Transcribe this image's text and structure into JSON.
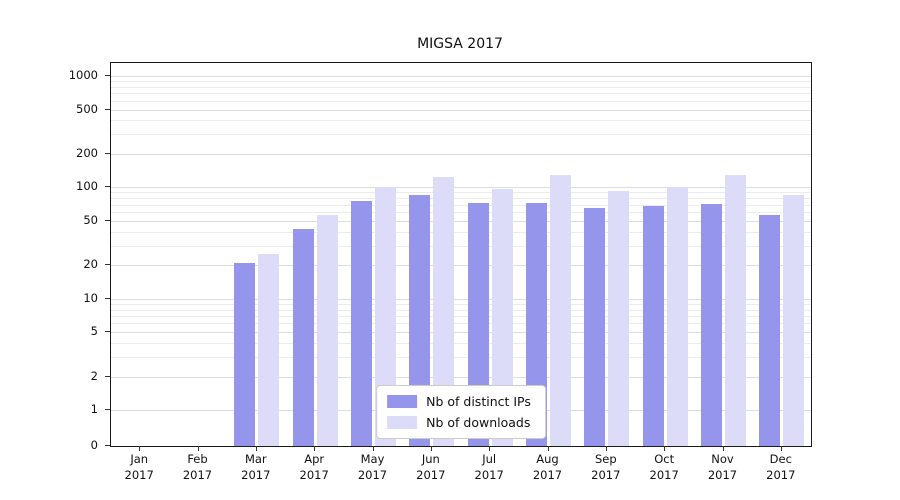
{
  "title": "MIGSA 2017",
  "colors": {
    "distinct_ips": "#9595ec",
    "downloads": "#dcdcf8",
    "grid_minor": "#ececec",
    "grid_major": "#dddddd",
    "axis": "#1a1a1a"
  },
  "legend": {
    "items": [
      {
        "label": "Nb of distinct IPs",
        "series": "distinct_ips"
      },
      {
        "label": "Nb of downloads",
        "series": "downloads"
      }
    ]
  },
  "chart_data": {
    "type": "bar",
    "title": "MIGSA 2017",
    "categories": [
      "Jan 2017",
      "Feb 2017",
      "Mar 2017",
      "Apr 2017",
      "May 2017",
      "Jun 2017",
      "Jul 2017",
      "Aug 2017",
      "Sep 2017",
      "Oct 2017",
      "Nov 2017",
      "Dec 2017"
    ],
    "series": [
      {
        "name": "Nb of distinct IPs",
        "color": "#9595ec",
        "values": [
          0,
          0,
          21,
          42,
          75,
          85,
          73,
          73,
          65,
          68,
          71,
          56
        ]
      },
      {
        "name": "Nb of downloads",
        "color": "#dcdcf8",
        "values": [
          0,
          0,
          25,
          57,
          100,
          125,
          97,
          130,
          93,
          100,
          130,
          85
        ]
      }
    ],
    "xlabel": "",
    "ylabel": "",
    "yscale": "symlog",
    "yticks": [
      0,
      1,
      2,
      5,
      10,
      20,
      50,
      100,
      200,
      500,
      1000
    ],
    "ylim": [
      0,
      1000
    ],
    "grid": true,
    "legend_position": "lower center"
  }
}
